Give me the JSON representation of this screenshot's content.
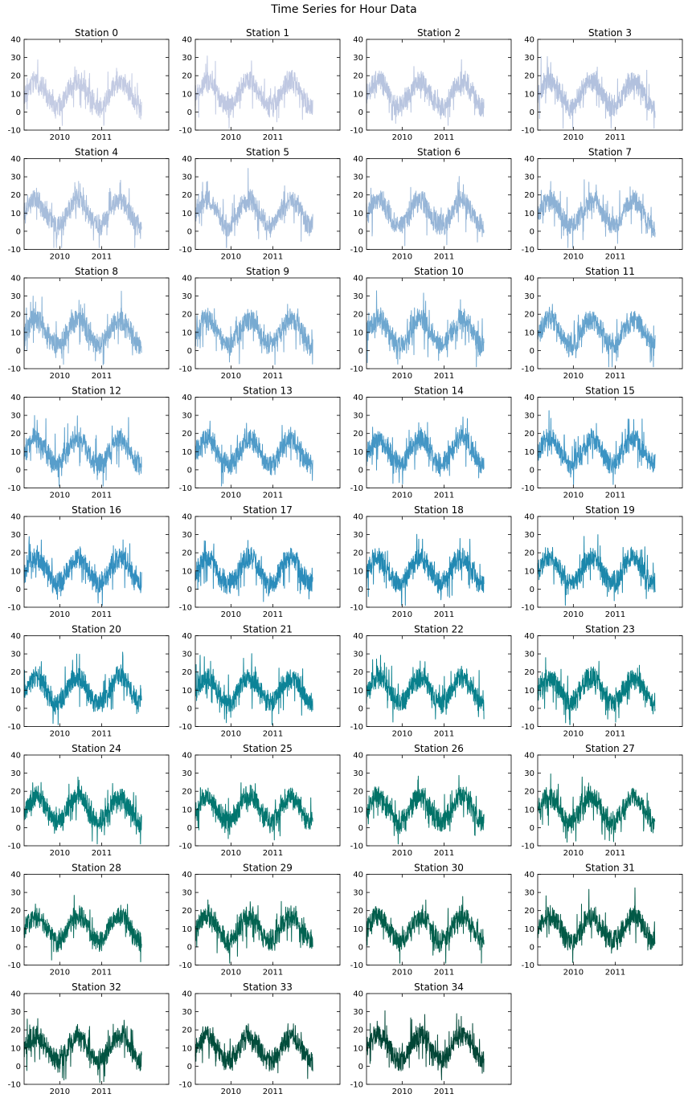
{
  "figure": {
    "title": "Time Series for Hour Data"
  },
  "chart_data": [
    {
      "type": "line",
      "title": "Station 0",
      "color": "#c3cbe3",
      "ylim": [
        -10,
        40
      ],
      "yticks": [
        -10,
        0,
        10,
        20,
        30,
        40
      ],
      "xticks": [
        "2010",
        "2011"
      ],
      "series": [
        {
          "amplitude": 14,
          "baseline": 10,
          "noise": 6
        }
      ]
    },
    {
      "type": "line",
      "title": "Station 1",
      "color": "#bfc8e2",
      "ylim": [
        -10,
        40
      ],
      "yticks": [
        -10,
        0,
        10,
        20,
        30,
        40
      ],
      "xticks": [
        "2010",
        "2011"
      ],
      "series": [
        {
          "amplitude": 14,
          "baseline": 10,
          "noise": 6
        }
      ]
    },
    {
      "type": "line",
      "title": "Station 2",
      "color": "#b7c4df",
      "ylim": [
        -10,
        40
      ],
      "yticks": [
        -10,
        0,
        10,
        20,
        30,
        40
      ],
      "xticks": [
        "2010",
        "2011"
      ],
      "series": [
        {
          "amplitude": 14,
          "baseline": 10,
          "noise": 6
        }
      ]
    },
    {
      "type": "line",
      "title": "Station 3",
      "color": "#b2c1de",
      "ylim": [
        -10,
        40
      ],
      "yticks": [
        -10,
        0,
        10,
        20,
        30,
        40
      ],
      "xticks": [
        "2010",
        "2011"
      ],
      "series": [
        {
          "amplitude": 14,
          "baseline": 10,
          "noise": 6
        }
      ]
    },
    {
      "type": "line",
      "title": "Station 4",
      "color": "#a7bddb",
      "ylim": [
        -10,
        40
      ],
      "yticks": [
        -10,
        0,
        10,
        20,
        30,
        40
      ],
      "xticks": [
        "2010",
        "2011"
      ],
      "series": [
        {
          "amplitude": 14,
          "baseline": 10,
          "noise": 6
        }
      ]
    },
    {
      "type": "line",
      "title": "Station 5",
      "color": "#a0b9d9",
      "ylim": [
        -10,
        40
      ],
      "yticks": [
        -10,
        0,
        10,
        20,
        30,
        40
      ],
      "xticks": [
        "2010",
        "2011"
      ],
      "series": [
        {
          "amplitude": 14,
          "baseline": 10,
          "noise": 6
        }
      ]
    },
    {
      "type": "line",
      "title": "Station 6",
      "color": "#96b5d7",
      "ylim": [
        -10,
        40
      ],
      "yticks": [
        -10,
        0,
        10,
        20,
        30,
        40
      ],
      "xticks": [
        "2010",
        "2011"
      ],
      "series": [
        {
          "amplitude": 14,
          "baseline": 10,
          "noise": 6
        }
      ]
    },
    {
      "type": "line",
      "title": "Station 7",
      "color": "#8cb1d5",
      "ylim": [
        -10,
        40
      ],
      "yticks": [
        -10,
        0,
        10,
        20,
        30,
        40
      ],
      "xticks": [
        "2010",
        "2011"
      ],
      "series": [
        {
          "amplitude": 14,
          "baseline": 10,
          "noise": 6
        }
      ]
    },
    {
      "type": "line",
      "title": "Station 8",
      "color": "#81aed3",
      "ylim": [
        -10,
        40
      ],
      "yticks": [
        -10,
        0,
        10,
        20,
        30,
        40
      ],
      "xticks": [
        "2010",
        "2011"
      ],
      "series": [
        {
          "amplitude": 14,
          "baseline": 10,
          "noise": 6
        }
      ]
    },
    {
      "type": "line",
      "title": "Station 9",
      "color": "#77aad1",
      "ylim": [
        -10,
        40
      ],
      "yticks": [
        -10,
        0,
        10,
        20,
        30,
        40
      ],
      "xticks": [
        "2010",
        "2011"
      ],
      "series": [
        {
          "amplitude": 14,
          "baseline": 10,
          "noise": 6
        }
      ]
    },
    {
      "type": "line",
      "title": "Station 10",
      "color": "#6ca6cf",
      "ylim": [
        -10,
        40
      ],
      "yticks": [
        -10,
        0,
        10,
        20,
        30,
        40
      ],
      "xticks": [
        "2010",
        "2011"
      ],
      "series": [
        {
          "amplitude": 14,
          "baseline": 10,
          "noise": 6
        }
      ]
    },
    {
      "type": "line",
      "title": "Station 11",
      "color": "#63a2cd",
      "ylim": [
        -10,
        40
      ],
      "yticks": [
        -10,
        0,
        10,
        20,
        30,
        40
      ],
      "xticks": [
        "2010",
        "2011"
      ],
      "series": [
        {
          "amplitude": 14,
          "baseline": 10,
          "noise": 6
        }
      ]
    },
    {
      "type": "line",
      "title": "Station 12",
      "color": "#589ecb",
      "ylim": [
        -10,
        40
      ],
      "yticks": [
        -10,
        0,
        10,
        20,
        30,
        40
      ],
      "xticks": [
        "2010",
        "2011"
      ],
      "series": [
        {
          "amplitude": 14,
          "baseline": 10,
          "noise": 6
        }
      ]
    },
    {
      "type": "line",
      "title": "Station 13",
      "color": "#4e9ac8",
      "ylim": [
        -10,
        40
      ],
      "yticks": [
        -10,
        0,
        10,
        20,
        30,
        40
      ],
      "xticks": [
        "2010",
        "2011"
      ],
      "series": [
        {
          "amplitude": 14,
          "baseline": 10,
          "noise": 6
        }
      ]
    },
    {
      "type": "line",
      "title": "Station 14",
      "color": "#4496c5",
      "ylim": [
        -10,
        40
      ],
      "yticks": [
        -10,
        0,
        10,
        20,
        30,
        40
      ],
      "xticks": [
        "2010",
        "2011"
      ],
      "series": [
        {
          "amplitude": 14,
          "baseline": 10,
          "noise": 6
        }
      ]
    },
    {
      "type": "line",
      "title": "Station 15",
      "color": "#3b93c3",
      "ylim": [
        -10,
        40
      ],
      "yticks": [
        -10,
        0,
        10,
        20,
        30,
        40
      ],
      "xticks": [
        "2010",
        "2011"
      ],
      "series": [
        {
          "amplitude": 14,
          "baseline": 10,
          "noise": 6
        }
      ]
    },
    {
      "type": "line",
      "title": "Station 16",
      "color": "#338fc0",
      "ylim": [
        -10,
        40
      ],
      "yticks": [
        -10,
        0,
        10,
        20,
        30,
        40
      ],
      "xticks": [
        "2010",
        "2011"
      ],
      "series": [
        {
          "amplitude": 14,
          "baseline": 10,
          "noise": 6
        }
      ]
    },
    {
      "type": "line",
      "title": "Station 17",
      "color": "#2b8cbb",
      "ylim": [
        -10,
        40
      ],
      "yticks": [
        -10,
        0,
        10,
        20,
        30,
        40
      ],
      "xticks": [
        "2010",
        "2011"
      ],
      "series": [
        {
          "amplitude": 14,
          "baseline": 10,
          "noise": 6
        }
      ]
    },
    {
      "type": "line",
      "title": "Station 18",
      "color": "#2289b3",
      "ylim": [
        -10,
        40
      ],
      "yticks": [
        -10,
        0,
        10,
        20,
        30,
        40
      ],
      "xticks": [
        "2010",
        "2011"
      ],
      "series": [
        {
          "amplitude": 14,
          "baseline": 10,
          "noise": 6
        }
      ]
    },
    {
      "type": "line",
      "title": "Station 19",
      "color": "#1b87ab",
      "ylim": [
        -10,
        40
      ],
      "yticks": [
        -10,
        0,
        10,
        20,
        30,
        40
      ],
      "xticks": [
        "2010",
        "2011"
      ],
      "series": [
        {
          "amplitude": 14,
          "baseline": 10,
          "noise": 6
        }
      ]
    },
    {
      "type": "line",
      "title": "Station 20",
      "color": "#1385a2",
      "ylim": [
        -10,
        40
      ],
      "yticks": [
        -10,
        0,
        10,
        20,
        30,
        40
      ],
      "xticks": [
        "2010",
        "2011"
      ],
      "series": [
        {
          "amplitude": 14,
          "baseline": 10,
          "noise": 6
        }
      ]
    },
    {
      "type": "line",
      "title": "Station 21",
      "color": "#0c8397",
      "ylim": [
        -10,
        40
      ],
      "yticks": [
        -10,
        0,
        10,
        20,
        30,
        40
      ],
      "xticks": [
        "2010",
        "2011"
      ],
      "series": [
        {
          "amplitude": 14,
          "baseline": 10,
          "noise": 6
        }
      ]
    },
    {
      "type": "line",
      "title": "Station 22",
      "color": "#08808c",
      "ylim": [
        -10,
        40
      ],
      "yticks": [
        -10,
        0,
        10,
        20,
        30,
        40
      ],
      "xticks": [
        "2010",
        "2011"
      ],
      "series": [
        {
          "amplitude": 14,
          "baseline": 10,
          "noise": 6
        }
      ]
    },
    {
      "type": "line",
      "title": "Station 23",
      "color": "#067d82",
      "ylim": [
        -10,
        40
      ],
      "yticks": [
        -10,
        0,
        10,
        20,
        30,
        40
      ],
      "xticks": [
        "2010",
        "2011"
      ],
      "series": [
        {
          "amplitude": 14,
          "baseline": 10,
          "noise": 6
        }
      ]
    },
    {
      "type": "line",
      "title": "Station 24",
      "color": "#037a78",
      "ylim": [
        -10,
        40
      ],
      "yticks": [
        -10,
        0,
        10,
        20,
        30,
        40
      ],
      "xticks": [
        "2010",
        "2011"
      ],
      "series": [
        {
          "amplitude": 14,
          "baseline": 10,
          "noise": 6
        }
      ]
    },
    {
      "type": "line",
      "title": "Station 25",
      "color": "#02766f",
      "ylim": [
        -10,
        40
      ],
      "yticks": [
        -10,
        0,
        10,
        20,
        30,
        40
      ],
      "xticks": [
        "2010",
        "2011"
      ],
      "series": [
        {
          "amplitude": 14,
          "baseline": 10,
          "noise": 6
        }
      ]
    },
    {
      "type": "line",
      "title": "Station 26",
      "color": "#017267",
      "ylim": [
        -10,
        40
      ],
      "yticks": [
        -10,
        0,
        10,
        20,
        30,
        40
      ],
      "xticks": [
        "2010",
        "2011"
      ],
      "series": [
        {
          "amplitude": 14,
          "baseline": 10,
          "noise": 6
        }
      ]
    },
    {
      "type": "line",
      "title": "Station 27",
      "color": "#016d5f",
      "ylim": [
        -10,
        40
      ],
      "yticks": [
        -10,
        0,
        10,
        20,
        30,
        40
      ],
      "xticks": [
        "2010",
        "2011"
      ],
      "series": [
        {
          "amplitude": 14,
          "baseline": 10,
          "noise": 6
        }
      ]
    },
    {
      "type": "line",
      "title": "Station 28",
      "color": "#016858",
      "ylim": [
        -10,
        40
      ],
      "yticks": [
        -10,
        0,
        10,
        20,
        30,
        40
      ],
      "xticks": [
        "2010",
        "2011"
      ],
      "series": [
        {
          "amplitude": 14,
          "baseline": 10,
          "noise": 6
        }
      ]
    },
    {
      "type": "line",
      "title": "Station 29",
      "color": "#016351",
      "ylim": [
        -10,
        40
      ],
      "yticks": [
        -10,
        0,
        10,
        20,
        30,
        40
      ],
      "xticks": [
        "2010",
        "2011"
      ],
      "series": [
        {
          "amplitude": 14,
          "baseline": 10,
          "noise": 6
        }
      ]
    },
    {
      "type": "line",
      "title": "Station 30",
      "color": "#015e4b",
      "ylim": [
        -10,
        40
      ],
      "yticks": [
        -10,
        0,
        10,
        20,
        30,
        40
      ],
      "xticks": [
        "2010",
        "2011"
      ],
      "series": [
        {
          "amplitude": 14,
          "baseline": 10,
          "noise": 6
        }
      ]
    },
    {
      "type": "line",
      "title": "Station 31",
      "color": "#015946",
      "ylim": [
        -10,
        40
      ],
      "yticks": [
        -10,
        0,
        10,
        20,
        30,
        40
      ],
      "xticks": [
        "2010",
        "2011"
      ],
      "series": [
        {
          "amplitude": 14,
          "baseline": 10,
          "noise": 6
        }
      ]
    },
    {
      "type": "line",
      "title": "Station 32",
      "color": "#015341",
      "ylim": [
        -10,
        40
      ],
      "yticks": [
        -10,
        0,
        10,
        20,
        30,
        40
      ],
      "xticks": [
        "2010",
        "2011"
      ],
      "series": [
        {
          "amplitude": 14,
          "baseline": 10,
          "noise": 6
        }
      ]
    },
    {
      "type": "line",
      "title": "Station 33",
      "color": "#014d3c",
      "ylim": [
        -10,
        40
      ],
      "yticks": [
        -10,
        0,
        10,
        20,
        30,
        40
      ],
      "xticks": [
        "2010",
        "2011"
      ],
      "series": [
        {
          "amplitude": 14,
          "baseline": 10,
          "noise": 6
        }
      ]
    },
    {
      "type": "line",
      "title": "Station 34",
      "color": "#014636",
      "ylim": [
        -10,
        40
      ],
      "yticks": [
        -10,
        0,
        10,
        20,
        30,
        40
      ],
      "xticks": [
        "2010",
        "2011"
      ],
      "series": [
        {
          "amplitude": 14,
          "baseline": 10,
          "noise": 6
        }
      ]
    }
  ]
}
